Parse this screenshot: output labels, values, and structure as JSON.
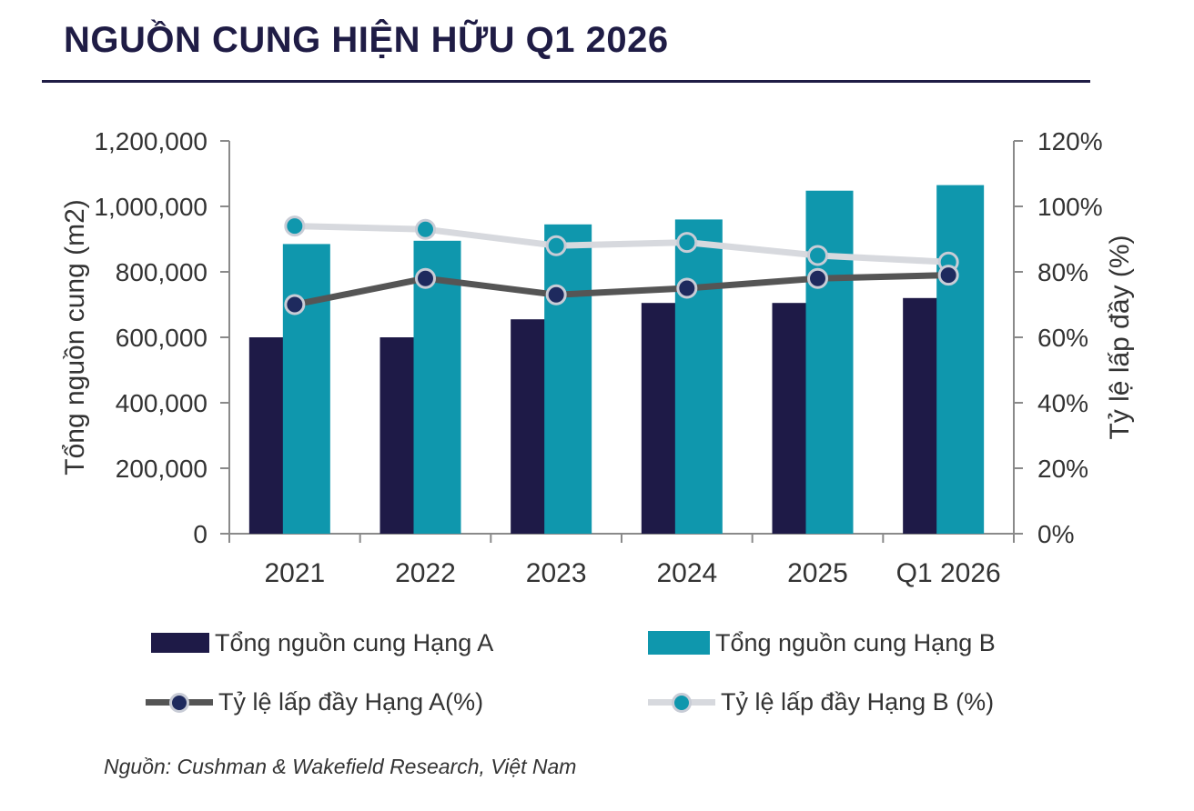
{
  "header": {
    "title": "NGUỒN CUNG HIỆN HỮU Q1 2026"
  },
  "chart_data": {
    "type": "bar",
    "categories": [
      "2021",
      "2022",
      "2023",
      "2024",
      "2025",
      "Q1 2026"
    ],
    "ylabel": "Tổng nguồn cung (m2)",
    "y2label": "Tỷ lệ lấp đầy (%)",
    "ylim": [
      0,
      1200000
    ],
    "y2lim": [
      0,
      120
    ],
    "yticks": [
      "0",
      "200,000",
      "400,000",
      "600,000",
      "800,000",
      "1,000,000",
      "1,200,000"
    ],
    "y2ticks": [
      "0%",
      "20%",
      "40%",
      "60%",
      "80%",
      "100%",
      "120%"
    ],
    "series": [
      {
        "name": "Tổng nguồn cung Hạng A",
        "kind": "bar",
        "axis": "left",
        "color": "#1e1a47",
        "values": [
          600000,
          600000,
          655000,
          705000,
          705000,
          720000
        ]
      },
      {
        "name": "Tổng nguồn cung Hạng B",
        "kind": "bar",
        "axis": "left",
        "color": "#0f97ad",
        "values": [
          885000,
          895000,
          945000,
          960000,
          1048000,
          1065000
        ]
      },
      {
        "name": "Tỷ lệ lấp đầy Hạng A(%)",
        "kind": "line",
        "axis": "right",
        "color": "#555555",
        "marker_color": "#1e2a5e",
        "values": [
          70,
          78,
          73,
          75,
          78,
          79
        ]
      },
      {
        "name": "Tỷ lệ lấp đầy Hạng B (%)",
        "kind": "line",
        "axis": "right",
        "color": "#d7d9de",
        "marker_color": "#0f97ad",
        "values": [
          94,
          93,
          88,
          89,
          85,
          83
        ]
      }
    ],
    "grid": false,
    "legend_position": "bottom"
  },
  "footer": {
    "source": "Nguồn: Cushman & Wakefield Research, Việt Nam"
  }
}
